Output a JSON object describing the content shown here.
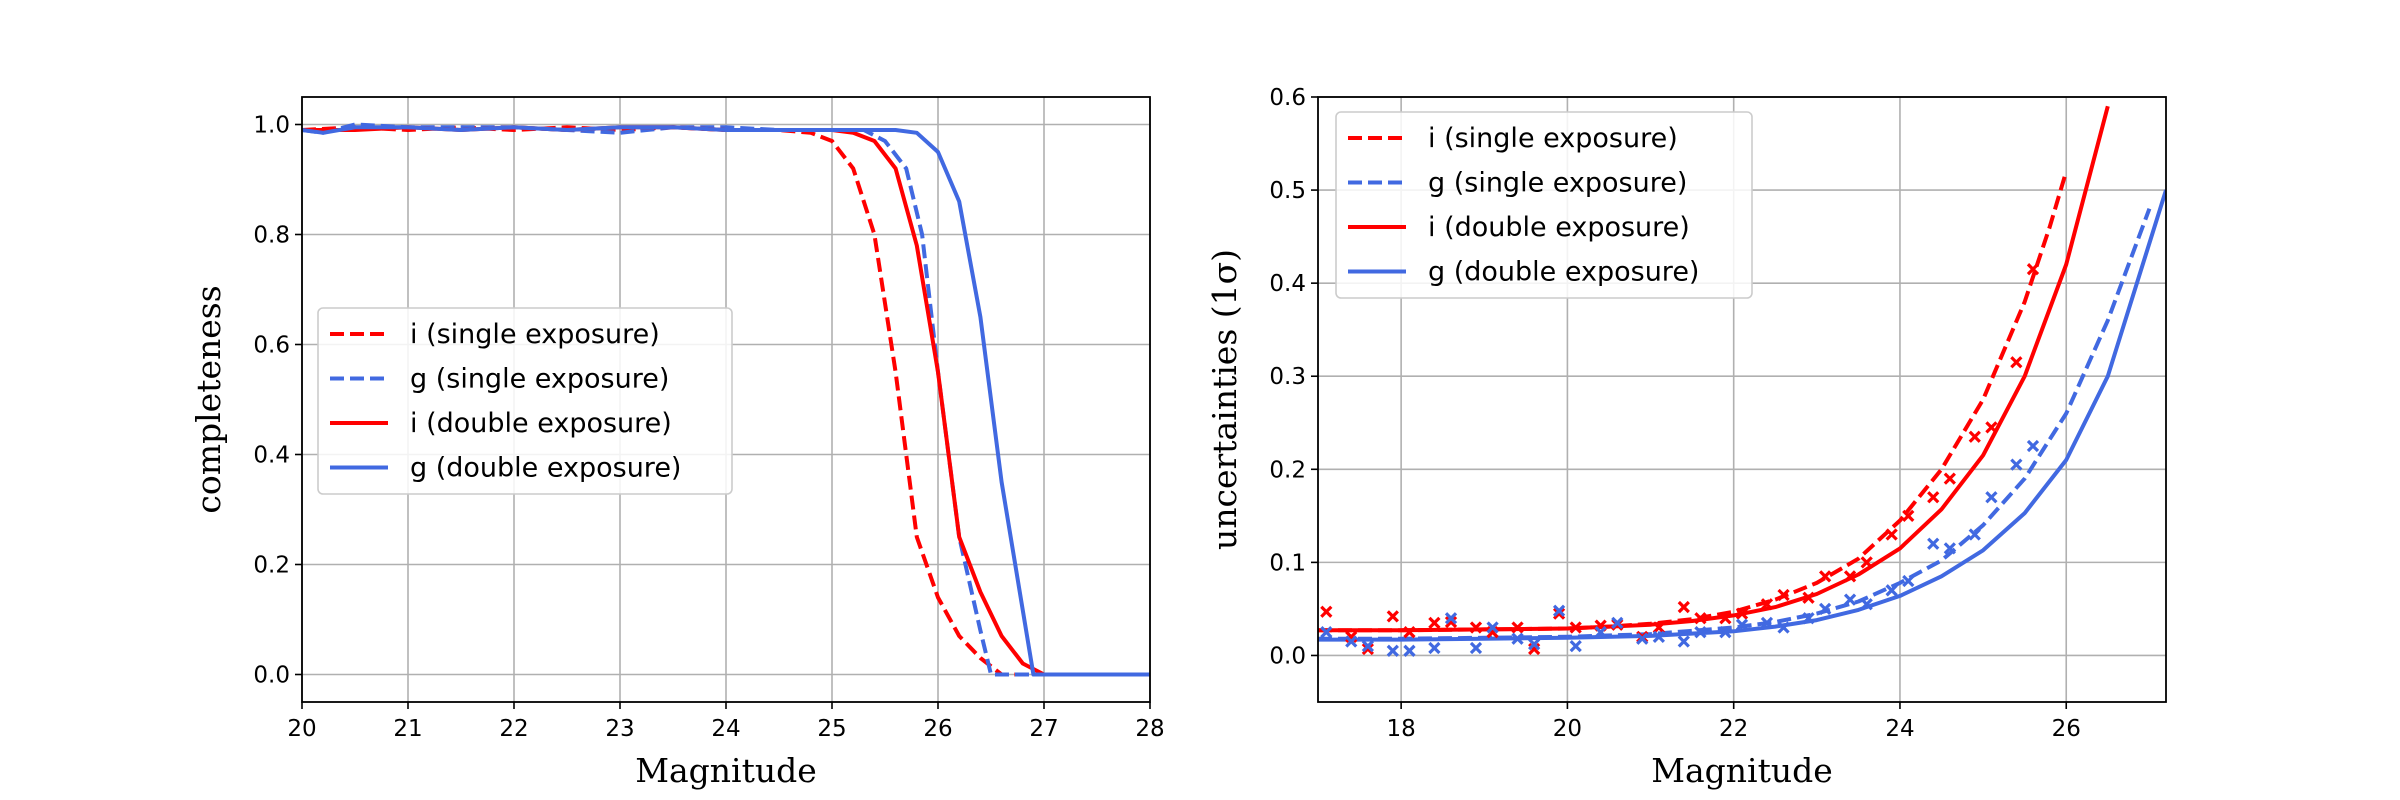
{
  "chart_data": [
    {
      "type": "line",
      "xlabel": "Magnitude",
      "ylabel": "completeness",
      "xlim": [
        20,
        28
      ],
      "ylim": [
        -0.05,
        1.05
      ],
      "xticks": [
        20,
        21,
        22,
        23,
        24,
        25,
        26,
        27,
        28
      ],
      "yticks": [
        0.0,
        0.2,
        0.4,
        0.6,
        0.8,
        1.0
      ],
      "grid": true,
      "legend_position": "center-left",
      "series": [
        {
          "name": "i  (single exposure)",
          "color": "#ff0000",
          "style": "dashed",
          "x": [
            20,
            20.5,
            21,
            21.5,
            22,
            22.5,
            23,
            23.5,
            24,
            24.5,
            24.8,
            25,
            25.2,
            25.4,
            25.6,
            25.8,
            26,
            26.2,
            26.4,
            26.6,
            28
          ],
          "y": [
            0.99,
            0.995,
            0.99,
            0.995,
            0.99,
            0.995,
            0.99,
            0.995,
            0.99,
            0.99,
            0.985,
            0.97,
            0.92,
            0.8,
            0.55,
            0.25,
            0.14,
            0.07,
            0.03,
            0.0,
            0.0
          ]
        },
        {
          "name": "g (single exposure)",
          "color": "#4169e1",
          "style": "dashed",
          "x": [
            20,
            20.2,
            20.5,
            21,
            21.5,
            22,
            22.5,
            23,
            23.5,
            24,
            24.5,
            25,
            25.3,
            25.5,
            25.7,
            25.85,
            26,
            26.2,
            26.4,
            26.5,
            28
          ],
          "y": [
            0.99,
            0.985,
            1.0,
            0.995,
            0.995,
            0.995,
            0.99,
            0.985,
            0.995,
            0.995,
            0.99,
            0.99,
            0.99,
            0.97,
            0.92,
            0.8,
            0.55,
            0.25,
            0.08,
            0.0,
            0.0
          ]
        },
        {
          "name": "i  (double exposure)",
          "color": "#ff0000",
          "style": "solid",
          "x": [
            20,
            20.5,
            21,
            21.5,
            22,
            22.5,
            23,
            23.5,
            24,
            24.5,
            25,
            25.2,
            25.4,
            25.6,
            25.8,
            26,
            26.2,
            26.4,
            26.6,
            26.8,
            27,
            28
          ],
          "y": [
            0.99,
            0.99,
            0.995,
            0.99,
            0.995,
            0.99,
            0.995,
            0.995,
            0.99,
            0.99,
            0.99,
            0.985,
            0.97,
            0.92,
            0.78,
            0.55,
            0.25,
            0.15,
            0.07,
            0.02,
            0.0,
            0.0
          ]
        },
        {
          "name": "g (double exposure)",
          "color": "#4169e1",
          "style": "solid",
          "x": [
            20,
            20.2,
            20.5,
            21,
            21.5,
            22,
            22.5,
            23,
            23.5,
            24,
            24.5,
            25,
            25.3,
            25.6,
            25.8,
            26,
            26.2,
            26.4,
            26.6,
            26.9,
            27,
            28
          ],
          "y": [
            0.99,
            0.985,
            0.995,
            0.995,
            0.99,
            0.995,
            0.99,
            0.995,
            0.995,
            0.99,
            0.99,
            0.99,
            0.99,
            0.99,
            0.985,
            0.95,
            0.86,
            0.65,
            0.35,
            0.0,
            0.0,
            0.0
          ]
        }
      ]
    },
    {
      "type": "scatter",
      "xlabel": "Magnitude",
      "ylabel": "uncertainties (1σ)",
      "xlim": [
        17,
        27.2
      ],
      "ylim": [
        -0.05,
        0.6
      ],
      "xticks": [
        18,
        20,
        22,
        24,
        26
      ],
      "yticks": [
        0.0,
        0.1,
        0.2,
        0.3,
        0.4,
        0.5,
        0.6
      ],
      "grid": true,
      "legend_position": "top-left",
      "curves": [
        {
          "name": "i  (single exposure)",
          "color": "#ff0000",
          "style": "dashed",
          "x": [
            17,
            18,
            19,
            20,
            20.5,
            21,
            21.5,
            22,
            22.5,
            23,
            23.5,
            24,
            24.5,
            25,
            25.5,
            25.8,
            26
          ],
          "y": [
            0.027,
            0.027,
            0.028,
            0.029,
            0.031,
            0.034,
            0.039,
            0.047,
            0.06,
            0.078,
            0.104,
            0.145,
            0.2,
            0.275,
            0.38,
            0.46,
            0.52
          ]
        },
        {
          "name": "g (single exposure)",
          "color": "#4169e1",
          "style": "dashed",
          "x": [
            17,
            18,
            19,
            20,
            21,
            22,
            22.5,
            23,
            23.5,
            24,
            24.5,
            25,
            25.5,
            26,
            26.5,
            27
          ],
          "y": [
            0.018,
            0.018,
            0.019,
            0.02,
            0.023,
            0.03,
            0.036,
            0.045,
            0.058,
            0.078,
            0.102,
            0.14,
            0.19,
            0.26,
            0.36,
            0.48
          ]
        },
        {
          "name": "i  (double exposure)",
          "color": "#ff0000",
          "style": "solid",
          "x": [
            17,
            18,
            19,
            20,
            21,
            21.5,
            22,
            22.5,
            23,
            23.5,
            24,
            24.5,
            25,
            25.5,
            26,
            26.5
          ],
          "y": [
            0.027,
            0.027,
            0.028,
            0.029,
            0.033,
            0.037,
            0.043,
            0.052,
            0.066,
            0.087,
            0.115,
            0.157,
            0.215,
            0.3,
            0.42,
            0.59
          ]
        },
        {
          "name": "g (double exposure)",
          "color": "#4169e1",
          "style": "solid",
          "x": [
            17,
            18,
            19,
            20,
            21,
            22,
            22.5,
            23,
            23.5,
            24,
            24.5,
            25,
            25.5,
            26,
            26.5,
            27.2
          ],
          "y": [
            0.017,
            0.017,
            0.018,
            0.019,
            0.021,
            0.026,
            0.031,
            0.038,
            0.049,
            0.064,
            0.085,
            0.113,
            0.153,
            0.21,
            0.3,
            0.5
          ]
        }
      ],
      "points": [
        {
          "color": "#ff0000",
          "x": [
            17.1,
            17.4,
            17.6,
            17.9,
            18.1,
            18.4,
            18.6,
            18.9,
            19.1,
            19.4,
            19.6,
            19.9,
            20.1,
            20.4,
            20.6,
            20.9,
            21.1,
            21.4,
            21.6,
            21.9,
            22.1,
            22.4,
            22.6,
            22.9,
            23.1,
            23.4,
            23.6,
            23.9,
            24.1,
            24.4,
            24.6,
            24.9,
            25.1,
            25.4,
            25.6
          ],
          "y": [
            0.047,
            0.02,
            0.007,
            0.042,
            0.025,
            0.035,
            0.036,
            0.03,
            0.025,
            0.03,
            0.007,
            0.045,
            0.03,
            0.032,
            0.033,
            0.02,
            0.03,
            0.052,
            0.04,
            0.04,
            0.045,
            0.055,
            0.065,
            0.062,
            0.085,
            0.085,
            0.1,
            0.13,
            0.15,
            0.17,
            0.19,
            0.235,
            0.245,
            0.315,
            0.415
          ]
        },
        {
          "color": "#4169e1",
          "x": [
            17.1,
            17.4,
            17.6,
            17.9,
            18.1,
            18.4,
            18.6,
            18.9,
            19.1,
            19.4,
            19.6,
            19.9,
            20.1,
            20.4,
            20.6,
            20.9,
            21.1,
            21.4,
            21.6,
            21.9,
            22.1,
            22.4,
            22.6,
            22.9,
            23.1,
            23.4,
            23.6,
            23.9,
            24.1,
            24.4,
            24.6,
            24.9,
            25.1,
            25.4,
            25.6
          ],
          "y": [
            0.025,
            0.015,
            0.01,
            0.005,
            0.005,
            0.008,
            0.04,
            0.008,
            0.03,
            0.018,
            0.012,
            0.048,
            0.01,
            0.025,
            0.035,
            0.018,
            0.02,
            0.015,
            0.025,
            0.025,
            0.033,
            0.035,
            0.03,
            0.04,
            0.05,
            0.06,
            0.055,
            0.07,
            0.08,
            0.12,
            0.115,
            0.13,
            0.17,
            0.205,
            0.225
          ]
        }
      ]
    }
  ]
}
